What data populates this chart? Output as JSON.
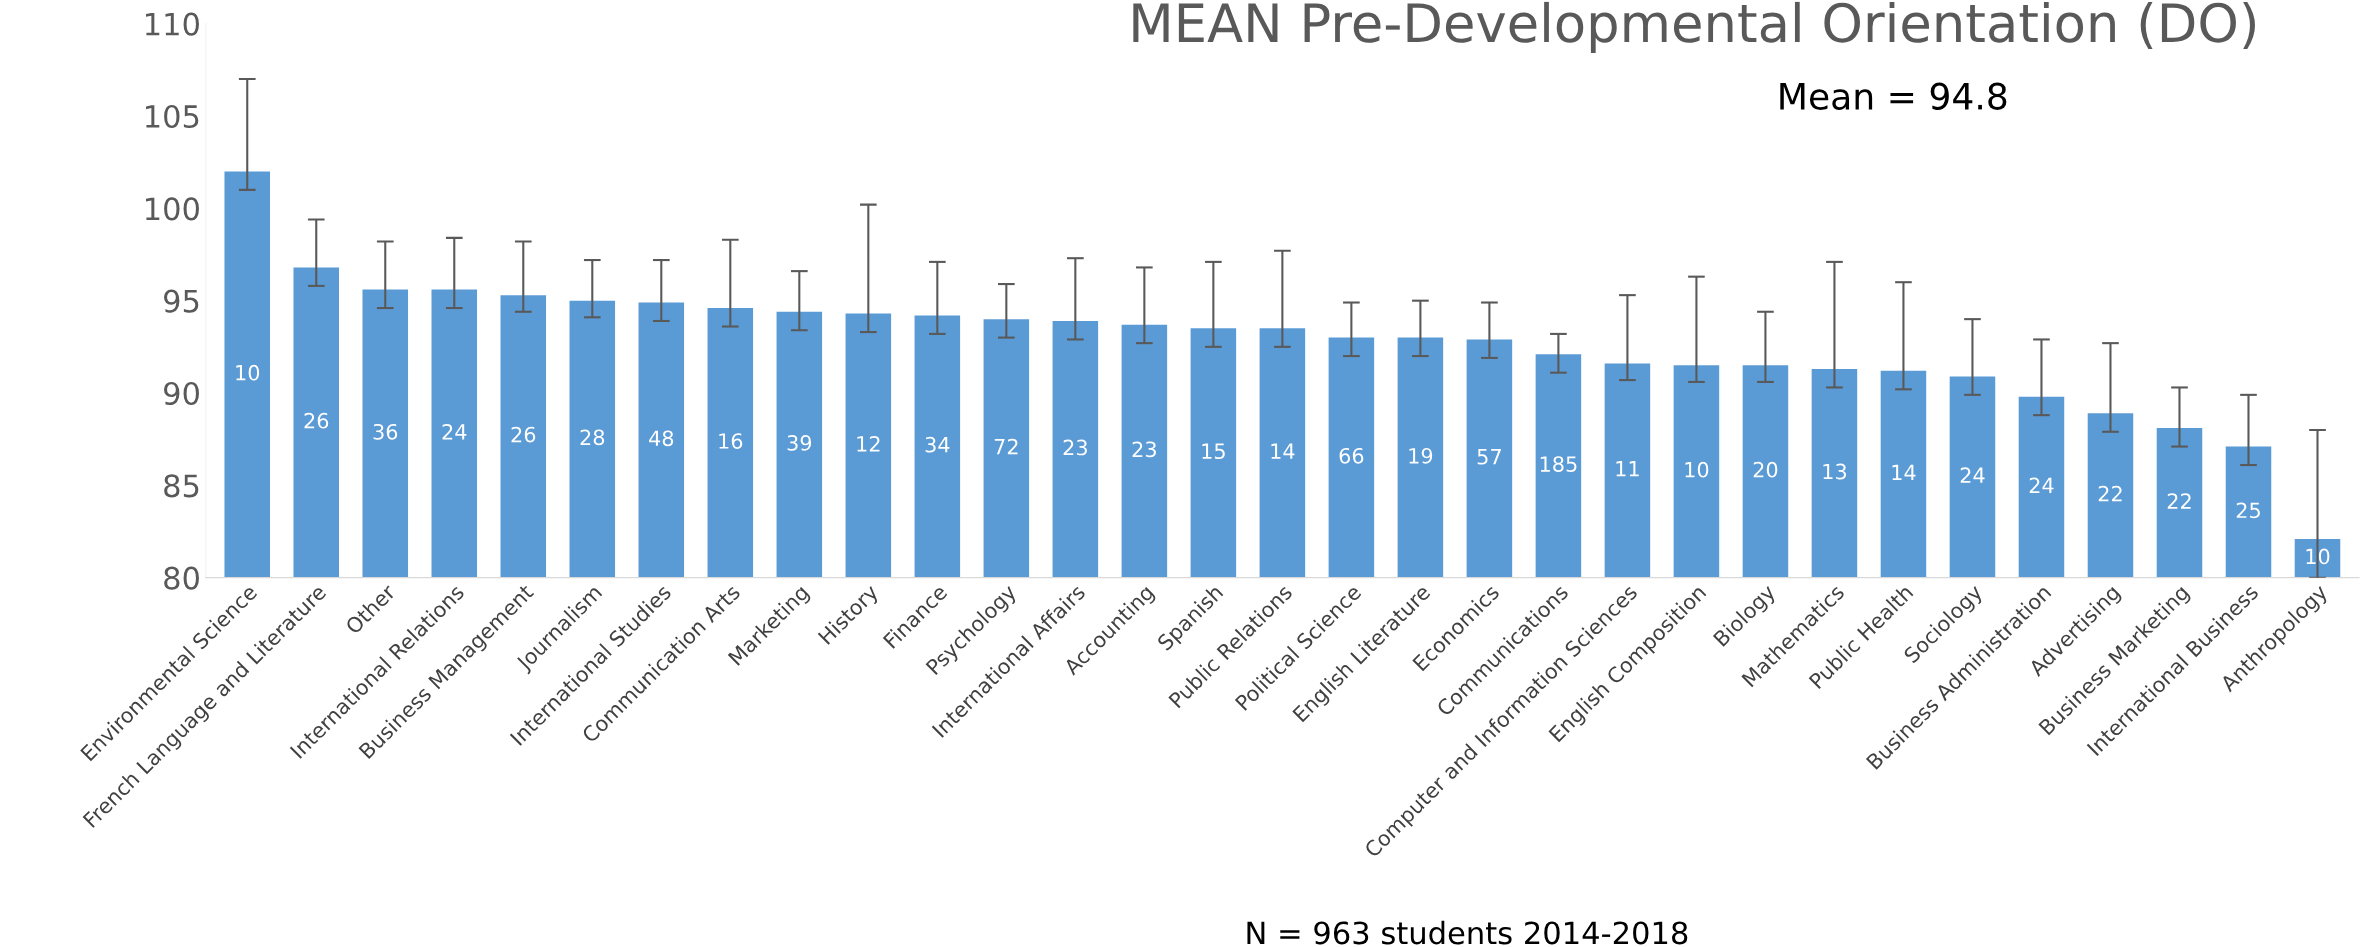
{
  "chart_data": {
    "type": "bar",
    "title": "MEAN Pre-Developmental Orientation (DO)",
    "categories": [
      "Environmental Science",
      "French Language and Literature",
      "Other",
      "International Relations",
      "Business Management",
      "Journalism",
      "International Studies",
      "Communication Arts",
      "Marketing",
      "History",
      "Finance",
      "Psychology",
      "International Affairs",
      "Accounting",
      "Spanish",
      "Public Relations",
      "Political Science",
      "English Literature",
      "Economics",
      "Communications",
      "Computer and Information Sciences",
      "English Composition",
      "Biology",
      "Mathematics",
      "Public Health",
      "Sociology",
      "Business Administration",
      "Advertising",
      "Business Marketing",
      "International Business",
      "Anthropology"
    ],
    "values": [
      102.0,
      96.8,
      95.6,
      95.6,
      95.3,
      95.0,
      94.9,
      94.6,
      94.4,
      94.3,
      94.2,
      94.0,
      93.9,
      93.7,
      93.5,
      93.5,
      93.0,
      93.0,
      92.9,
      92.1,
      91.6,
      91.5,
      91.5,
      91.3,
      91.2,
      90.9,
      89.8,
      88.9,
      88.1,
      87.1,
      82.1
    ],
    "errors": [
      [
        101.0,
        107.0
      ],
      [
        95.8,
        99.4
      ],
      [
        94.6,
        98.2
      ],
      [
        94.6,
        98.4
      ],
      [
        94.4,
        98.2
      ],
      [
        94.1,
        97.2
      ],
      [
        93.9,
        97.2
      ],
      [
        93.6,
        98.3
      ],
      [
        93.4,
        96.6
      ],
      [
        93.3,
        100.2
      ],
      [
        93.2,
        97.1
      ],
      [
        93.0,
        95.9
      ],
      [
        92.9,
        97.3
      ],
      [
        92.7,
        96.8
      ],
      [
        92.5,
        97.1
      ],
      [
        92.5,
        97.7
      ],
      [
        92.0,
        94.9
      ],
      [
        92.0,
        95.0
      ],
      [
        91.9,
        94.9
      ],
      [
        91.1,
        93.2
      ],
      [
        90.7,
        95.3
      ],
      [
        90.6,
        96.3
      ],
      [
        90.6,
        94.4
      ],
      [
        90.3,
        97.1
      ],
      [
        90.2,
        96.0
      ],
      [
        89.9,
        94.0
      ],
      [
        88.8,
        92.9
      ],
      [
        87.9,
        92.7
      ],
      [
        87.1,
        90.3
      ],
      [
        86.1,
        89.9
      ],
      [
        80,
        88.0
      ]
    ],
    "color": "#5b9bd5",
    "ylim": [
      80,
      110
    ],
    "yticks": [
      80,
      85,
      90,
      95,
      100,
      105,
      110
    ],
    "grid": false,
    "legend": false,
    "annotations": [
      "Mean = 94.8",
      "N = 963 students 2014-2018",
      "10",
      "26",
      "36",
      "24",
      "26",
      "28",
      "48",
      "16",
      "39",
      "12",
      "34",
      "72",
      "23",
      "23",
      "15",
      "14",
      "66",
      "19",
      "57",
      "185",
      "11",
      "10",
      "20",
      "13",
      "14",
      "24",
      "24",
      "22",
      "22",
      "25",
      "10"
    ]
  }
}
